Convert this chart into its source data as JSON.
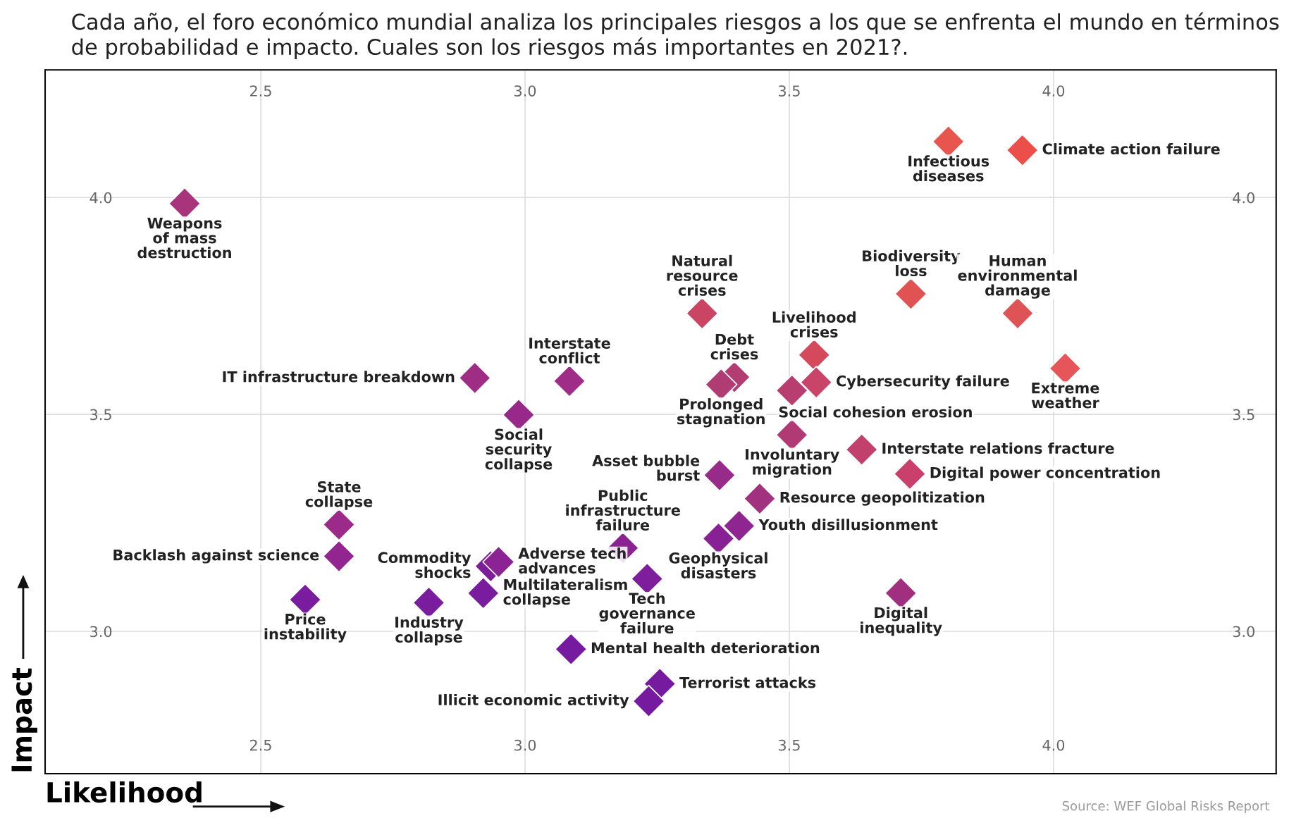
{
  "chart_data": {
    "type": "scatter",
    "title": "Cada año, el foro económico mundial analiza los principales riesgos a los que se enfrenta el mundo en términos de probabilidad e impacto. Cuales son los riesgos más importantes en 2021?.",
    "xlabel": "Likelihood",
    "ylabel": "Impact",
    "x": [
      2.356,
      3.801,
      3.941,
      3.73,
      3.932,
      3.335,
      3.547,
      4.022,
      3.551,
      3.396,
      3.371,
      3.505,
      3.084,
      2.905,
      2.988,
      3.505,
      3.637,
      3.728,
      3.368,
      3.444,
      3.405,
      3.366,
      3.185,
      2.648,
      2.648,
      2.935,
      2.95,
      3.231,
      2.921,
      2.584,
      2.818,
      3.711,
      3.087,
      3.255,
      3.234
    ],
    "values": [
      3.986,
      4.129,
      4.109,
      3.778,
      3.733,
      3.733,
      3.637,
      3.606,
      3.574,
      3.586,
      3.569,
      3.555,
      3.577,
      3.584,
      3.499,
      3.453,
      3.419,
      3.363,
      3.36,
      3.306,
      3.243,
      3.214,
      3.192,
      3.246,
      3.173,
      3.15,
      3.16,
      3.121,
      3.088,
      3.073,
      3.066,
      3.088,
      2.959,
      2.879,
      2.839
    ],
    "colors": [
      "#a8357c",
      "#e8554f",
      "#ec4f4a",
      "#e05352",
      "#de5456",
      "#c94563",
      "#d44a5c",
      "#e6555a",
      "#c84468",
      "#b23d72",
      "#b03c74",
      "#b83e70",
      "#9f2c86",
      "#a02d84",
      "#98298a",
      "#b23a74",
      "#c2406c",
      "#c9406c",
      "#982a8a",
      "#a23280",
      "#8f2590",
      "#882294",
      "#8a2292",
      "#9c2a88",
      "#932590",
      "#7e1d9a",
      "#8b2394",
      "#7e1e9c",
      "#7a1c9e",
      "#7a1c9e",
      "#7a1c9e",
      "#a0307f",
      "#761a9f",
      "#761aa0",
      "#761aa0"
    ],
    "annotations": [
      {
        "text": "Weapons\nof mass\ndestruction",
        "x": 2.356,
        "y": 3.986
      },
      {
        "text": "Infectious\ndiseases",
        "x": 3.801,
        "y": 4.129
      },
      {
        "text": "Climate action failure",
        "x": 3.941,
        "y": 4.109
      },
      {
        "text": "Biodiversity\nloss",
        "x": 3.73,
        "y": 3.778
      },
      {
        "text": "Human\nenvironmental\ndamage",
        "x": 3.932,
        "y": 3.733
      },
      {
        "text": "Natural\nresource\ncrises",
        "x": 3.335,
        "y": 3.733
      },
      {
        "text": "Livelihood\ncrises",
        "x": 3.547,
        "y": 3.637
      },
      {
        "text": "Extreme\nweather",
        "x": 4.022,
        "y": 3.606
      },
      {
        "text": "Cybersecurity failure",
        "x": 3.551,
        "y": 3.574
      },
      {
        "text": "Debt\ncrises",
        "x": 3.396,
        "y": 3.586
      },
      {
        "text": "Prolonged\nstagnation",
        "x": 3.371,
        "y": 3.569
      },
      {
        "text": "Social cohesion erosion",
        "x": 3.505,
        "y": 3.555
      },
      {
        "text": "Interstate\nconflict",
        "x": 3.084,
        "y": 3.577
      },
      {
        "text": "IT infrastructure breakdown",
        "x": 2.905,
        "y": 3.584
      },
      {
        "text": "Social\nsecurity\ncollapse",
        "x": 2.988,
        "y": 3.499
      },
      {
        "text": "Involuntary\nmigration",
        "x": 3.505,
        "y": 3.453
      },
      {
        "text": "Interstate relations fracture",
        "x": 3.637,
        "y": 3.419
      },
      {
        "text": "Digital power concentration",
        "x": 3.728,
        "y": 3.363
      },
      {
        "text": "Asset bubble\nburst",
        "x": 3.368,
        "y": 3.36
      },
      {
        "text": "Resource geopolitization",
        "x": 3.444,
        "y": 3.306
      },
      {
        "text": "Youth disillusionment",
        "x": 3.405,
        "y": 3.243
      },
      {
        "text": "Geophysical\ndisasters",
        "x": 3.366,
        "y": 3.214
      },
      {
        "text": "Public\ninfrastructure\nfailure",
        "x": 3.185,
        "y": 3.192
      },
      {
        "text": "State\ncollapse",
        "x": 2.648,
        "y": 3.246
      },
      {
        "text": "Backlash against science",
        "x": 2.648,
        "y": 3.173
      },
      {
        "text": "Commodity\nshocks",
        "x": 2.935,
        "y": 3.15
      },
      {
        "text": "Adverse tech\nadvances",
        "x": 2.95,
        "y": 3.16
      },
      {
        "text": "Tech\ngovernance\nfailure",
        "x": 3.231,
        "y": 3.121
      },
      {
        "text": "Multilateralism\ncollapse",
        "x": 2.921,
        "y": 3.088
      },
      {
        "text": "Price\ninstability",
        "x": 2.584,
        "y": 3.073
      },
      {
        "text": "Industry\ncollapse",
        "x": 2.818,
        "y": 3.066
      },
      {
        "text": "Digital\ninequality",
        "x": 3.711,
        "y": 3.088
      },
      {
        "text": "Mental health deterioration",
        "x": 3.087,
        "y": 2.959
      },
      {
        "text": "Terrorist attacks",
        "x": 3.255,
        "y": 2.879
      },
      {
        "text": "Illicit economic activity",
        "x": 3.234,
        "y": 2.839
      },
      "Source: WEF Global Risks Report"
    ],
    "xlim": [
      2.092,
      4.421
    ],
    "ylim": [
      2.672,
      4.294
    ],
    "xticks": [
      {
        "value": 2.5,
        "label": "2.5"
      },
      {
        "value": 3,
        "label": "3.0"
      },
      {
        "value": 3.5,
        "label": "3.5"
      },
      {
        "value": 4,
        "label": "4.0"
      }
    ],
    "yticks": [
      {
        "value": 3,
        "label": "3.0"
      },
      {
        "value": 3.5,
        "label": "3.5"
      },
      {
        "value": 4,
        "label": "4.0"
      }
    ],
    "x2lim": [
      2.092,
      4.421
    ],
    "x2ticks": [
      {
        "value": 2.5,
        "label": "2.5"
      },
      {
        "value": 3,
        "label": "3.0"
      },
      {
        "value": 3.5,
        "label": "3.5"
      },
      {
        "value": 4,
        "label": "4.0"
      }
    ],
    "y2lim": [
      2.672,
      4.294
    ],
    "y2ticks": [
      {
        "value": 3,
        "label": "3.0"
      },
      {
        "value": 3.5,
        "label": "3.5"
      },
      {
        "value": 4,
        "label": "4.0"
      }
    ],
    "grid": true,
    "marker": "diamond"
  }
}
